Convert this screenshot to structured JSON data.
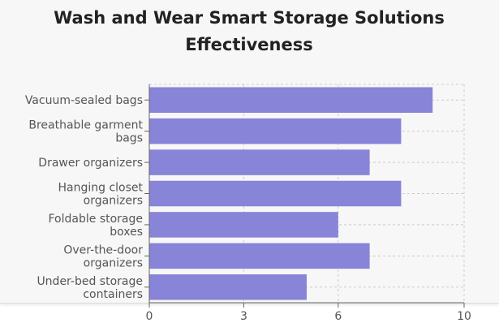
{
  "chart_data": {
    "type": "bar",
    "orientation": "horizontal",
    "title": "Wash and Wear Smart Storage Solutions Effectiveness",
    "title_lines": [
      "Wash and Wear Smart Storage Solutions",
      "Effectiveness"
    ],
    "categories": [
      "Vacuum-sealed bags",
      "Breathable garment bags",
      "Drawer organizers",
      "Hanging closet organizers",
      "Foldable storage boxes",
      "Over-the-door organizers",
      "Under-bed storage containers"
    ],
    "category_lines": [
      [
        "Vacuum-sealed bags"
      ],
      [
        "Breathable garment",
        "bags"
      ],
      [
        "Drawer organizers"
      ],
      [
        "Hanging closet",
        "organizers"
      ],
      [
        "Foldable storage",
        "boxes"
      ],
      [
        "Over-the-door",
        "organizers"
      ],
      [
        "Under-bed storage",
        "containers"
      ]
    ],
    "values": [
      9,
      8,
      7,
      8,
      6,
      7,
      5
    ],
    "xlim": [
      0,
      10
    ],
    "x_ticks": [
      0,
      3,
      6,
      10
    ],
    "xlabel": "",
    "ylabel": "",
    "grid": true,
    "bar_color": "#8884d8"
  }
}
